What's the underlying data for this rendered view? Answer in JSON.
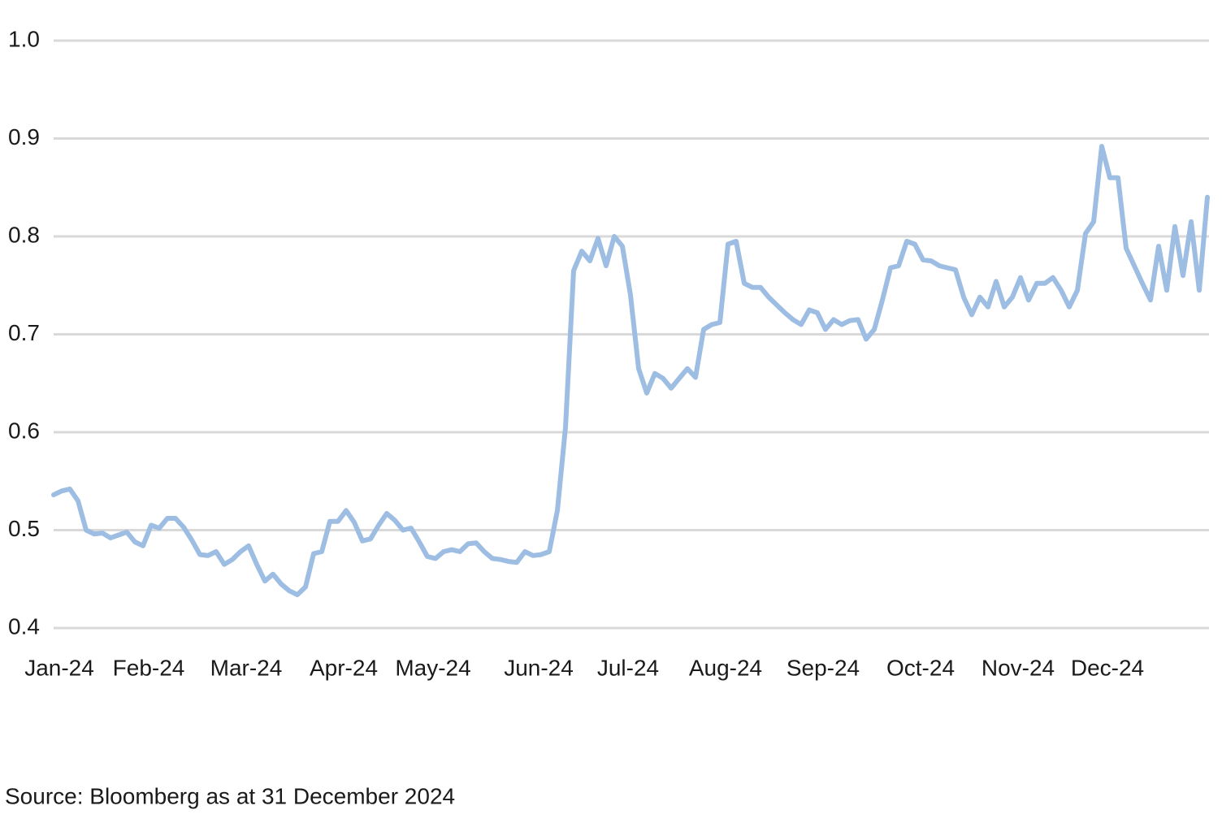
{
  "chart_data": {
    "type": "line",
    "categories": [
      null,
      "Jan-24",
      null,
      null,
      null,
      null,
      null,
      null,
      null,
      null,
      null,
      null,
      "Feb-24",
      null,
      null,
      null,
      null,
      null,
      null,
      null,
      null,
      null,
      null,
      null,
      "Mar-24",
      null,
      null,
      null,
      null,
      null,
      null,
      null,
      null,
      null,
      null,
      null,
      "Apr-24",
      null,
      null,
      null,
      null,
      null,
      null,
      null,
      null,
      null,
      null,
      "May-24",
      null,
      null,
      null,
      null,
      null,
      null,
      null,
      null,
      null,
      null,
      null,
      null,
      "Jun-24",
      null,
      null,
      null,
      null,
      null,
      null,
      null,
      null,
      null,
      null,
      "Jul-24",
      null,
      null,
      null,
      null,
      null,
      null,
      null,
      null,
      null,
      null,
      null,
      "Aug-24",
      null,
      null,
      null,
      null,
      null,
      null,
      null,
      null,
      null,
      null,
      null,
      "Sep-24",
      null,
      null,
      null,
      null,
      null,
      null,
      null,
      null,
      null,
      null,
      null,
      "Oct-24",
      null,
      null,
      null,
      null,
      null,
      null,
      null,
      null,
      null,
      null,
      null,
      "Nov-24",
      null,
      null,
      null,
      null,
      null,
      null,
      null,
      null,
      null,
      null,
      "Dec-24",
      null,
      null,
      null,
      null,
      null,
      null,
      null,
      null,
      null,
      null,
      null,
      null
    ],
    "series": [
      {
        "color": "#9dbde3",
        "values": [
          0.536,
          0.54,
          0.542,
          0.53,
          0.5,
          0.496,
          0.497,
          0.492,
          0.495,
          0.498,
          0.488,
          0.484,
          0.505,
          0.502,
          0.512,
          0.512,
          0.503,
          0.49,
          0.475,
          0.474,
          0.478,
          0.465,
          0.47,
          0.478,
          0.484,
          0.465,
          0.448,
          0.455,
          0.445,
          0.438,
          0.434,
          0.442,
          0.476,
          0.478,
          0.509,
          0.509,
          0.52,
          0.508,
          0.489,
          0.491,
          0.505,
          0.517,
          0.51,
          0.5,
          0.502,
          0.488,
          0.473,
          0.471,
          0.478,
          0.48,
          0.478,
          0.486,
          0.487,
          0.478,
          0.471,
          0.47,
          0.468,
          0.467,
          0.478,
          0.474,
          0.475,
          0.478,
          0.52,
          0.605,
          0.765,
          0.785,
          0.775,
          0.798,
          0.77,
          0.8,
          0.79,
          0.74,
          0.665,
          0.64,
          0.66,
          0.655,
          0.645,
          0.655,
          0.665,
          0.656,
          0.705,
          0.71,
          0.712,
          0.792,
          0.795,
          0.752,
          0.748,
          0.748,
          0.738,
          0.73,
          0.722,
          0.715,
          0.71,
          0.725,
          0.722,
          0.705,
          0.715,
          0.71,
          0.714,
          0.715,
          0.695,
          0.705,
          0.735,
          0.768,
          0.77,
          0.795,
          0.792,
          0.776,
          0.775,
          0.77,
          0.768,
          0.766,
          0.738,
          0.72,
          0.738,
          0.728,
          0.754,
          0.728,
          0.738,
          0.758,
          0.735,
          0.752,
          0.752,
          0.758,
          0.745,
          0.728,
          0.745,
          0.803,
          0.815,
          0.892,
          0.86,
          0.86,
          0.788,
          0.77,
          0.752,
          0.735,
          0.79,
          0.745,
          0.81,
          0.76,
          0.815,
          0.745,
          0.84
        ]
      }
    ],
    "ylim": [
      0.4,
      1.0
    ],
    "yticks": [
      0.4,
      0.5,
      0.6,
      0.7,
      0.8,
      0.9,
      {
        "value": 1.0,
        "label": "1.0"
      }
    ],
    "grid": true,
    "source": "Source: Bloomberg as at 31 December 2024"
  }
}
